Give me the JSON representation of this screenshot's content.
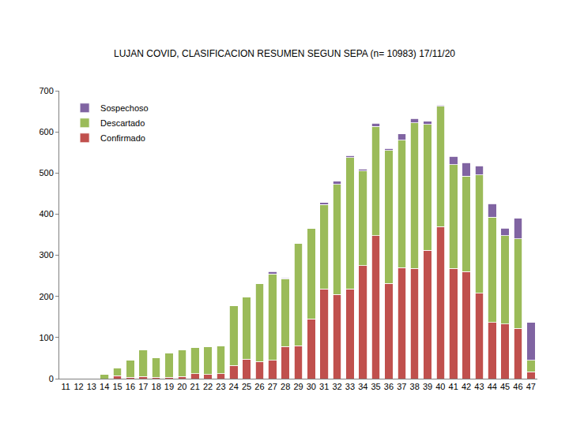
{
  "chart_data": {
    "type": "bar",
    "title": "LUJAN COVID, CLASIFICACION RESUMEN SEGUN SEPA (n= 10983) 17/11/20",
    "categories": [
      "11",
      "12",
      "13",
      "14",
      "15",
      "16",
      "17",
      "18",
      "19",
      "20",
      "21",
      "22",
      "23",
      "24",
      "25",
      "26",
      "27",
      "28",
      "29",
      "30",
      "31",
      "32",
      "33",
      "34",
      "35",
      "36",
      "37",
      "38",
      "39",
      "40",
      "41",
      "42",
      "43",
      "44",
      "45",
      "46",
      "47"
    ],
    "series": [
      {
        "name": "Confirmado",
        "color": "#c0504d",
        "values": [
          0,
          0,
          0,
          0,
          7,
          3,
          5,
          3,
          3,
          5,
          12,
          10,
          12,
          32,
          47,
          42,
          45,
          78,
          80,
          145,
          218,
          205,
          218,
          275,
          348,
          232,
          270,
          268,
          312,
          370,
          268,
          260,
          208,
          137,
          133,
          122,
          17
        ]
      },
      {
        "name": "Descartado",
        "color": "#9bbb59",
        "values": [
          0,
          0,
          0,
          10,
          19,
          43,
          65,
          47,
          59,
          65,
          63,
          67,
          68,
          146,
          151,
          190,
          210,
          165,
          248,
          220,
          205,
          267,
          319,
          230,
          265,
          323,
          310,
          354,
          306,
          292,
          252,
          232,
          287,
          256,
          215,
          218,
          28
        ]
      },
      {
        "name": "Sospechoso",
        "color": "#8064a2",
        "values": [
          0,
          0,
          0,
          0,
          0,
          0,
          0,
          0,
          0,
          0,
          0,
          0,
          0,
          0,
          0,
          0,
          5,
          2,
          0,
          0,
          5,
          8,
          5,
          5,
          8,
          5,
          15,
          10,
          8,
          3,
          20,
          33,
          22,
          32,
          18,
          50,
          92
        ]
      }
    ],
    "ylim": [
      0,
      700
    ],
    "yticks": [
      0,
      100,
      200,
      300,
      400,
      500,
      600,
      700
    ],
    "stacked": true,
    "grid": false,
    "legend": "top-left"
  }
}
